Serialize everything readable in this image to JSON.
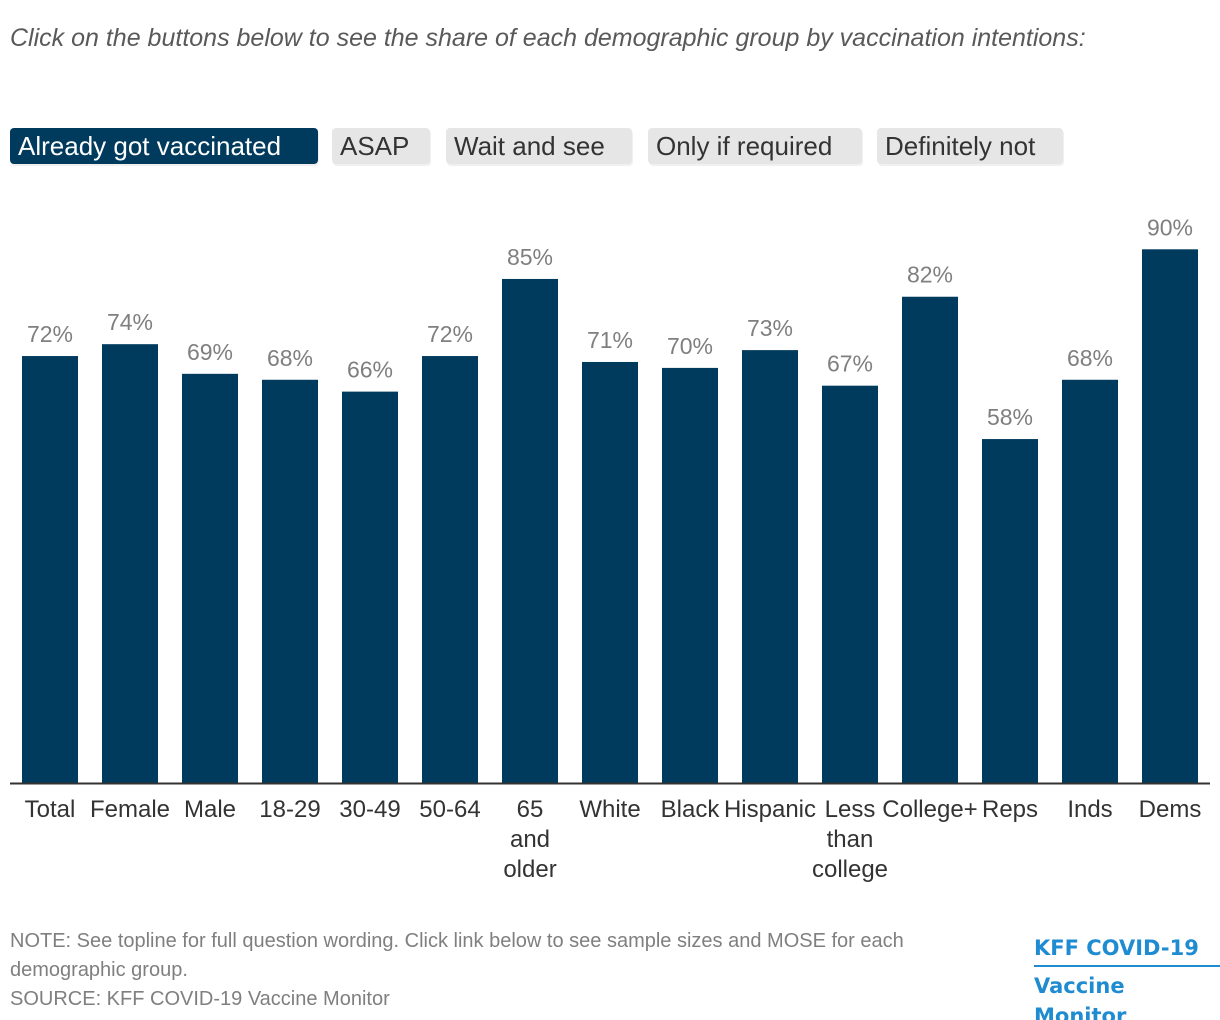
{
  "intro": "Click on the buttons below to see the share of each demographic group by vaccination intentions:",
  "buttons": [
    {
      "label": "Already got vaccinated",
      "active": true
    },
    {
      "label": "ASAP",
      "active": false
    },
    {
      "label": "Wait and see",
      "active": false
    },
    {
      "label": "Only if required",
      "active": false
    },
    {
      "label": "Definitely not",
      "active": false
    }
  ],
  "colors": {
    "bar": "#003a5d",
    "active_button": "#003a5d",
    "button": "#e6e6e6",
    "value_label": "#7f7f7f",
    "logo": "#1f8bd0"
  },
  "chart_data": {
    "type": "bar",
    "categories": [
      "Total",
      "Female",
      "Male",
      "18-29",
      "30-49",
      "50-64",
      "65 and older",
      "White",
      "Black",
      "Hispanic",
      "Less than college",
      "College+",
      "Reps",
      "Inds",
      "Dems"
    ],
    "series": [
      {
        "values": [
          72,
          74,
          69,
          68,
          66,
          72,
          85,
          71,
          70,
          73,
          67,
          82,
          58,
          68,
          90
        ]
      }
    ],
    "data_labels": [
      "72%",
      "74%",
      "69%",
      "68%",
      "66%",
      "72%",
      "85%",
      "71%",
      "70%",
      "73%",
      "67%",
      "82%",
      "58%",
      "68%",
      "90%"
    ],
    "ylim": [
      0,
      100
    ],
    "grid": false,
    "legend": "none"
  },
  "footer": {
    "note": "NOTE: See topline for full question wording. Click link below to see sample sizes and MOSE for each demographic group.",
    "source": "SOURCE: KFF COVID-19 Vaccine Monitor"
  },
  "logo": {
    "line1": "KFF COVID-19",
    "line2": "Vaccine Monitor"
  }
}
